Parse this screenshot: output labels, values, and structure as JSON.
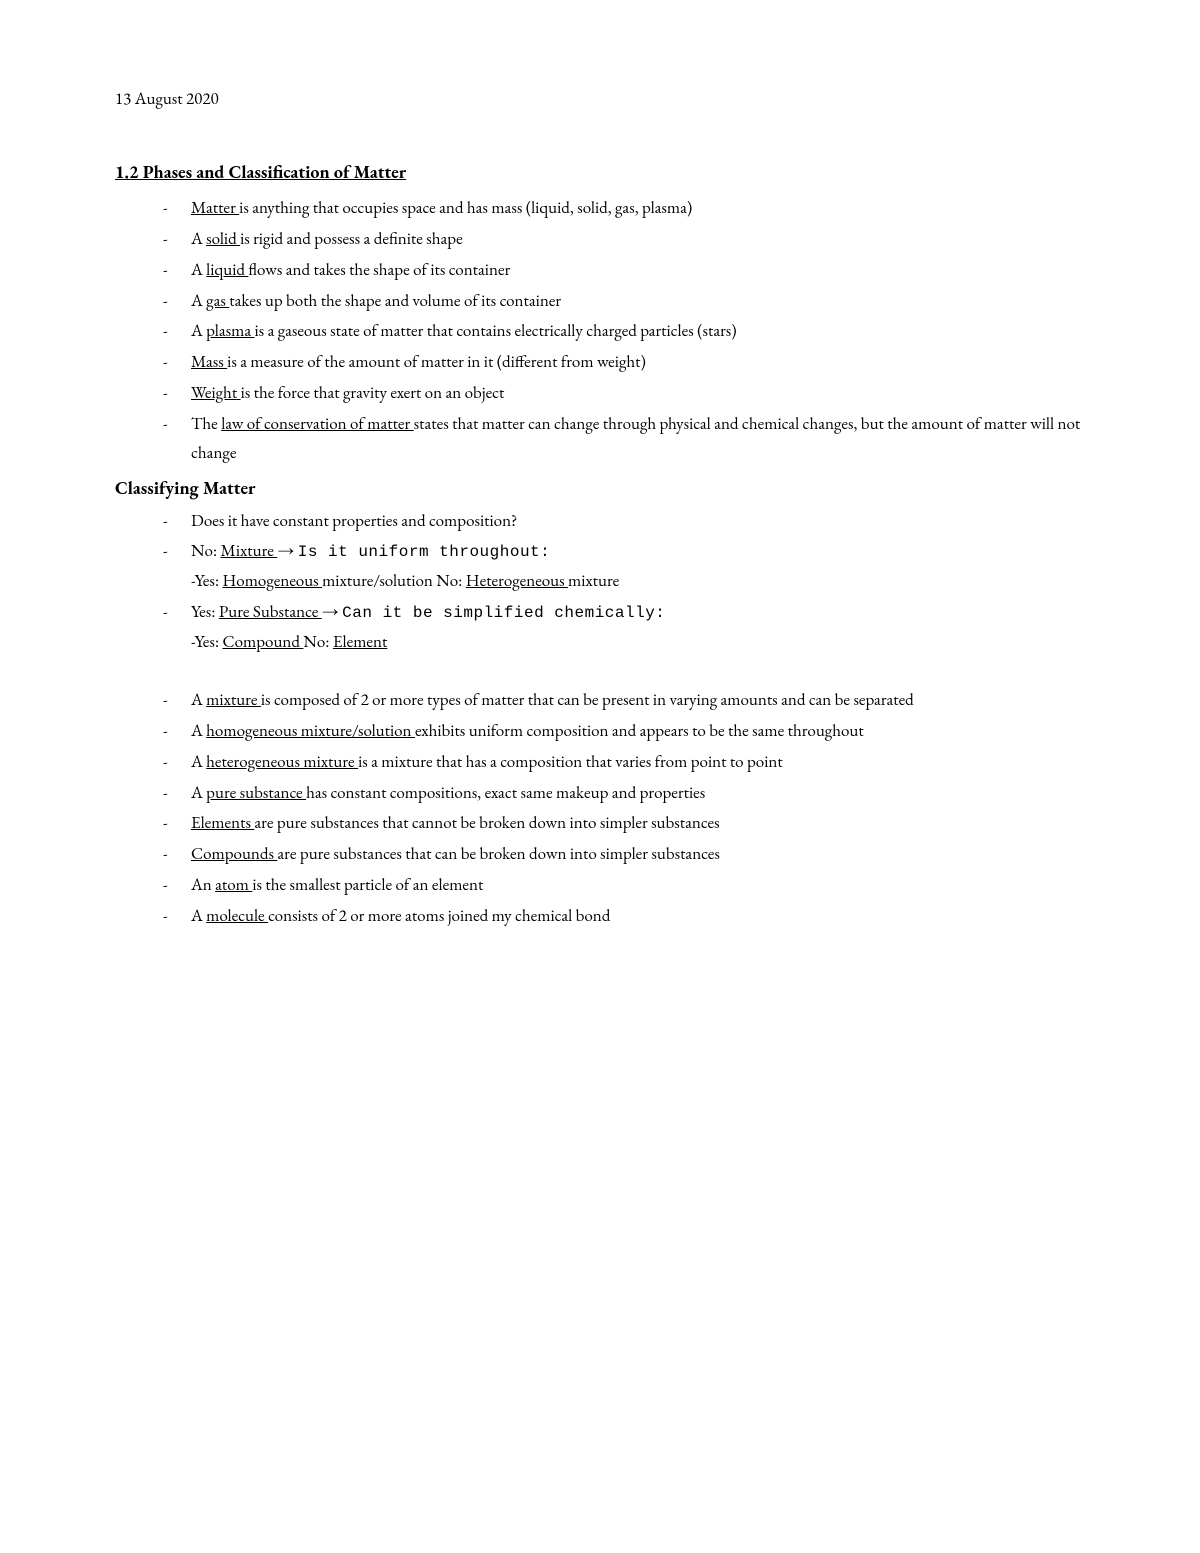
{
  "date": "13 August 2020",
  "section_title": "1.2 Phases and Classification of Matter",
  "subsection_title": "Classifying Matter",
  "list1": {
    "i0": {
      "term": "Matter ",
      "rest": "is anything that occupies space and has mass (liquid, solid, gas, plasma)"
    },
    "i1": {
      "pre": "A ",
      "term": "solid ",
      "rest": "is rigid and possess a definite shape"
    },
    "i2": {
      "pre": "A ",
      "term": "liquid ",
      "rest": "flows and takes the shape of its container"
    },
    "i3": {
      "pre": "A ",
      "term": "gas ",
      "rest": "takes up both the shape and volume of its container"
    },
    "i4": {
      "pre": "A ",
      "term": "plasma ",
      "rest": "is a gaseous state of matter that contains electrically charged particles (stars)"
    },
    "i5": {
      "term": "Mass ",
      "rest": "is a measure of the amount of matter in it (different from weight)"
    },
    "i6": {
      "term": "Weight ",
      "rest": "is the force that gravity exert on an object"
    },
    "i7": {
      "pre": "The ",
      "term": "law of conservation of matter ",
      "rest": "states that matter can change through physical and chemical changes, but the amount of matter will not change"
    }
  },
  "list2": {
    "q0": "Does it have constant properties and composition?",
    "no": {
      "pre": "No: ",
      "term": "Mixture ",
      "arrow": "→ ",
      "mono": "Is it uniform throughout:"
    },
    "no_sub": {
      "yes_pre": "-Yes: ",
      "yes_term": "Homogeneous ",
      "yes_rest": "mixture/solution No: ",
      "no_term": "Heterogeneous ",
      "no_rest": "mixture"
    },
    "yes": {
      "pre": "Yes: ",
      "term": "Pure Substance ",
      "arrow": " → ",
      "mono": "Can it be simplified chemically:"
    },
    "yes_sub": {
      "yes_pre": "-Yes: ",
      "yes_term": "Compound ",
      "no_pre": "No: ",
      "no_term": "Element"
    }
  },
  "list3": {
    "i0": {
      "pre": "A ",
      "term": "mixture ",
      "rest": "is composed of 2 or more types of matter that can be present in varying amounts and can be separated"
    },
    "i1": {
      "pre": "A ",
      "term": "homogeneous mixture/solution ",
      "rest": "exhibits uniform composition and appears to be the same throughout"
    },
    "i2": {
      "pre": "A ",
      "term": "heterogeneous mixture ",
      "rest": "is a mixture that has a composition that varies from point to point"
    },
    "i3": {
      "pre": "A ",
      "term": "pure substance ",
      "rest": "has constant compositions, exact same makeup and properties"
    },
    "i4": {
      "term": "Elements ",
      "rest": "are pure substances that cannot be broken down into simpler substances"
    },
    "i5": {
      "term": "Compounds ",
      "rest": "are pure substances that can be broken down into simpler substances"
    },
    "i6": {
      "pre": "An ",
      "term": "atom ",
      "rest": "is the smallest particle of an element"
    },
    "i7": {
      "pre": "A ",
      "term": "molecule ",
      "rest": "consists of 2 or more atoms joined my chemical bond"
    }
  },
  "colors": {
    "background": "#ffffff",
    "text": "#000000"
  },
  "typography": {
    "body_font": "Garamond",
    "body_size_pt": 12,
    "mono_font": "Courier New"
  }
}
